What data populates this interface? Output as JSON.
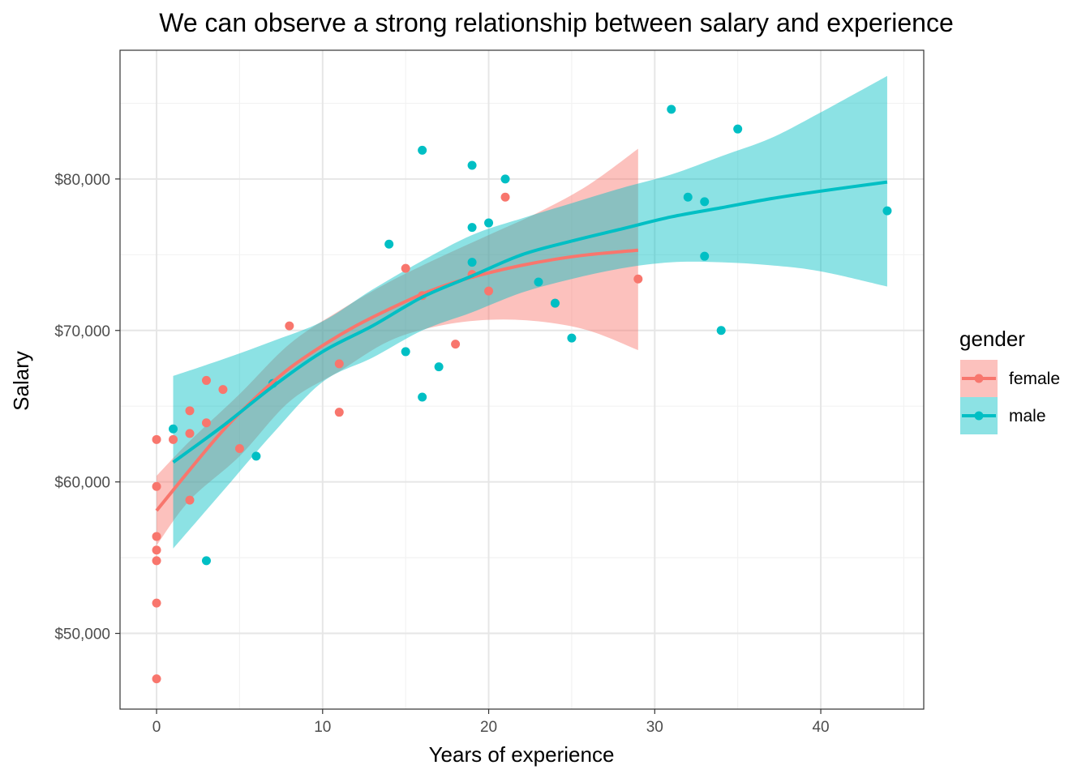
{
  "chart_data": {
    "type": "scatter",
    "title": "We can observe a strong relationship between salary and experience",
    "xlabel": "Years of experience",
    "ylabel": "Salary",
    "xlim": [
      -2.2,
      46.2
    ],
    "ylim": [
      45000,
      88500
    ],
    "x_ticks": [
      0,
      10,
      20,
      30,
      40
    ],
    "x_tick_labels": [
      "0",
      "10",
      "20",
      "30",
      "40"
    ],
    "y_ticks": [
      50000,
      60000,
      70000,
      80000
    ],
    "y_tick_labels": [
      "$50,000",
      "$60,000",
      "$70,000",
      "$80,000"
    ],
    "grid": true,
    "legend": {
      "title": "gender",
      "placement": "right"
    },
    "series": [
      {
        "name": "female",
        "color": "#F8766D",
        "points": [
          [
            0,
            47000
          ],
          [
            0,
            52000
          ],
          [
            0,
            54800
          ],
          [
            0,
            55500
          ],
          [
            0,
            56400
          ],
          [
            0,
            59700
          ],
          [
            0,
            62800
          ],
          [
            1,
            62800
          ],
          [
            2,
            58800
          ],
          [
            2,
            63200
          ],
          [
            2,
            64700
          ],
          [
            3,
            63900
          ],
          [
            3,
            66700
          ],
          [
            4,
            66100
          ],
          [
            5,
            62200
          ],
          [
            8,
            70300
          ],
          [
            11,
            64600
          ],
          [
            11,
            67800
          ],
          [
            15,
            74100
          ],
          [
            16,
            72300
          ],
          [
            18,
            69100
          ],
          [
            19,
            73700
          ],
          [
            20,
            72600
          ],
          [
            21,
            78800
          ],
          [
            24,
            71800
          ],
          [
            29,
            73400
          ]
        ],
        "smooth": [
          [
            0,
            58100
          ],
          [
            2,
            60800
          ],
          [
            4,
            63400
          ],
          [
            6,
            65600
          ],
          [
            8,
            67500
          ],
          [
            10,
            69000
          ],
          [
            12,
            70300
          ],
          [
            14,
            71400
          ],
          [
            16,
            72400
          ],
          [
            18,
            73200
          ],
          [
            20,
            73800
          ],
          [
            22,
            74300
          ],
          [
            24,
            74700
          ],
          [
            26,
            75000
          ],
          [
            29,
            75300
          ]
        ],
        "band_upper": [
          [
            0,
            60400
          ],
          [
            2,
            62700
          ],
          [
            5,
            65800
          ],
          [
            8,
            69100
          ],
          [
            11,
            71300
          ],
          [
            14,
            73200
          ],
          [
            17,
            74800
          ],
          [
            20,
            76300
          ],
          [
            23,
            77800
          ],
          [
            26,
            79600
          ],
          [
            29,
            82000
          ]
        ],
        "band_lower": [
          [
            0,
            55800
          ],
          [
            2,
            58800
          ],
          [
            5,
            61700
          ],
          [
            8,
            65300
          ],
          [
            11,
            67300
          ],
          [
            14,
            69300
          ],
          [
            17,
            70300
          ],
          [
            20,
            70700
          ],
          [
            23,
            70600
          ],
          [
            26,
            70000
          ],
          [
            29,
            68700
          ]
        ]
      },
      {
        "name": "male",
        "color": "#00BFC4",
        "points": [
          [
            1,
            63500
          ],
          [
            3,
            54800
          ],
          [
            6,
            61700
          ],
          [
            7,
            66500
          ],
          [
            14,
            75700
          ],
          [
            15,
            68600
          ],
          [
            16,
            65600
          ],
          [
            16,
            81900
          ],
          [
            17,
            67600
          ],
          [
            19,
            76800
          ],
          [
            19,
            80900
          ],
          [
            19,
            74500
          ],
          [
            20,
            77100
          ],
          [
            21,
            80000
          ],
          [
            23,
            73200
          ],
          [
            24,
            71800
          ],
          [
            25,
            69500
          ],
          [
            31,
            84600
          ],
          [
            32,
            78800
          ],
          [
            33,
            78500
          ],
          [
            33,
            74900
          ],
          [
            34,
            70000
          ],
          [
            35,
            83300
          ],
          [
            44,
            77900
          ]
        ],
        "smooth": [
          [
            1,
            61300
          ],
          [
            4,
            63700
          ],
          [
            7,
            66300
          ],
          [
            10,
            68600
          ],
          [
            13,
            70300
          ],
          [
            16,
            72200
          ],
          [
            19,
            73600
          ],
          [
            22,
            75000
          ],
          [
            25,
            75900
          ],
          [
            28,
            76700
          ],
          [
            31,
            77500
          ],
          [
            34,
            78100
          ],
          [
            37,
            78700
          ],
          [
            40,
            79200
          ],
          [
            44,
            79800
          ]
        ],
        "band_upper": [
          [
            1,
            67000
          ],
          [
            4,
            68100
          ],
          [
            7,
            69300
          ],
          [
            10,
            70600
          ],
          [
            13,
            72700
          ],
          [
            16,
            74600
          ],
          [
            19,
            76300
          ],
          [
            22,
            77400
          ],
          [
            25,
            78400
          ],
          [
            28,
            79400
          ],
          [
            31,
            80300
          ],
          [
            34,
            81500
          ],
          [
            37,
            82700
          ],
          [
            40,
            84400
          ],
          [
            44,
            86800
          ]
        ],
        "band_lower": [
          [
            1,
            55600
          ],
          [
            4,
            59400
          ],
          [
            7,
            63200
          ],
          [
            10,
            66600
          ],
          [
            13,
            68200
          ],
          [
            16,
            70000
          ],
          [
            19,
            71200
          ],
          [
            22,
            72500
          ],
          [
            25,
            73400
          ],
          [
            28,
            74100
          ],
          [
            31,
            74500
          ],
          [
            34,
            74500
          ],
          [
            37,
            74300
          ],
          [
            40,
            73900
          ],
          [
            44,
            72900
          ]
        ]
      }
    ]
  }
}
